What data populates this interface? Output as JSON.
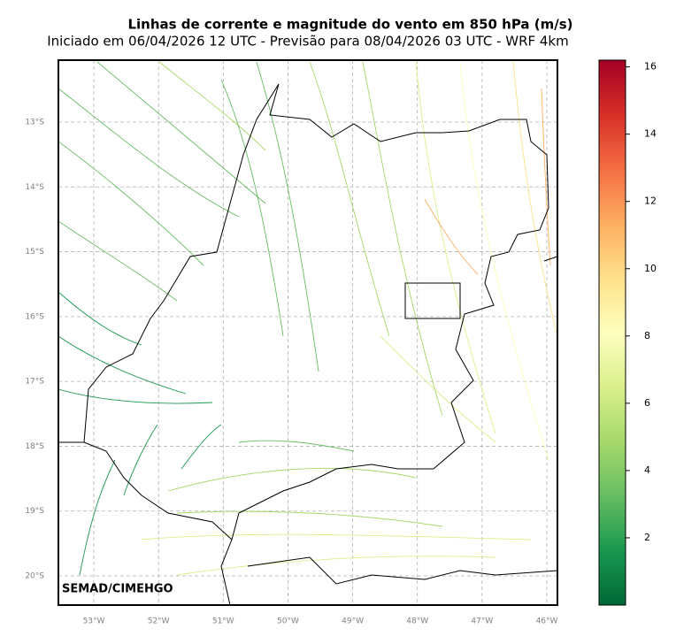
{
  "chart_data": {
    "type": "streamline-map",
    "title": "Linhas de corrente e magnitude do vento em 850 hPa (m/s)",
    "subtitle": "Iniciado em 06/04/2026 12 UTC - Previsão para 08/04/2026 03 UTC - WRF 4km",
    "credit": "SEMAD/CIMEHGO",
    "xlim": [
      -53.547,
      -45.836
    ],
    "ylim": [
      -20.45,
      -12.045
    ],
    "xticks": [
      {
        "value": -53,
        "label": "53°W"
      },
      {
        "value": -52,
        "label": "52°W"
      },
      {
        "value": -51,
        "label": "51°W"
      },
      {
        "value": -50,
        "label": "50°W"
      },
      {
        "value": -49,
        "label": "49°W"
      },
      {
        "value": -48,
        "label": "48°W"
      },
      {
        "value": -47,
        "label": "47°W"
      },
      {
        "value": -46,
        "label": "46°W"
      }
    ],
    "yticks": [
      {
        "value": -13,
        "label": "13°S"
      },
      {
        "value": -14,
        "label": "14°S"
      },
      {
        "value": -15,
        "label": "15°S"
      },
      {
        "value": -16,
        "label": "16°S"
      },
      {
        "value": -17,
        "label": "17°S"
      },
      {
        "value": -18,
        "label": "18°S"
      },
      {
        "value": -19,
        "label": "19°S"
      },
      {
        "value": -20,
        "label": "20°S"
      }
    ],
    "grid": true,
    "clim": [
      0,
      16.2
    ],
    "cticks": [
      2,
      4,
      6,
      8,
      10,
      12,
      14,
      16
    ],
    "colormap": [
      "#006837",
      "#1a9850",
      "#66bd63",
      "#a6d96a",
      "#d9ef8b",
      "#ffffbf",
      "#fee08b",
      "#fdae61",
      "#f46d43",
      "#d73027",
      "#a50026"
    ]
  }
}
